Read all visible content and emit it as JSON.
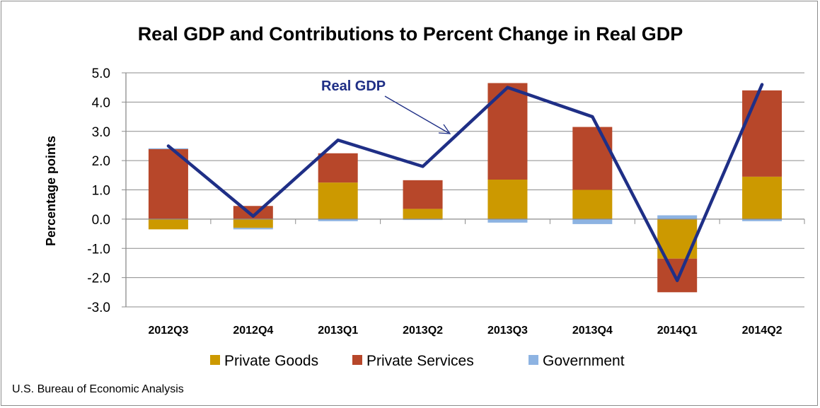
{
  "chart_data": {
    "type": "bar",
    "stacked": true,
    "title": "Real GDP and Contributions to Percent Change in Real GDP",
    "ylabel": "Percentage points",
    "xlabel": "",
    "ylim": [
      -3.0,
      5.0
    ],
    "yticks": [
      "-3.0",
      "-2.0",
      "-1.0",
      "0.0",
      "1.0",
      "2.0",
      "3.0",
      "4.0",
      "5.0"
    ],
    "grid": true,
    "legend_position": "bottom",
    "categories": [
      "2012Q3",
      "2012Q4",
      "2013Q1",
      "2013Q2",
      "2013Q3",
      "2013Q4",
      "2014Q1",
      "2014Q2"
    ],
    "series": [
      {
        "name": "Private Goods",
        "color": "#cc9900",
        "values": [
          -0.35,
          -0.3,
          1.25,
          0.35,
          1.35,
          1.0,
          -1.35,
          1.45
        ]
      },
      {
        "name": "Private Services",
        "color": "#b7472a",
        "values": [
          2.4,
          0.45,
          1.0,
          0.98,
          3.3,
          2.15,
          -1.15,
          2.95
        ]
      },
      {
        "name": "Government",
        "color": "#8db3e2",
        "values": [
          0.02,
          -0.05,
          -0.07,
          -0.03,
          -0.12,
          -0.17,
          0.13,
          -0.07
        ]
      }
    ],
    "line": {
      "name": "Real GDP",
      "color": "#1f2f86",
      "values": [
        2.5,
        0.1,
        2.7,
        1.8,
        4.5,
        3.5,
        -2.1,
        4.6
      ]
    },
    "annotation": {
      "text": "Real GDP"
    },
    "source": "U.S. Bureau of Economic Analysis"
  }
}
